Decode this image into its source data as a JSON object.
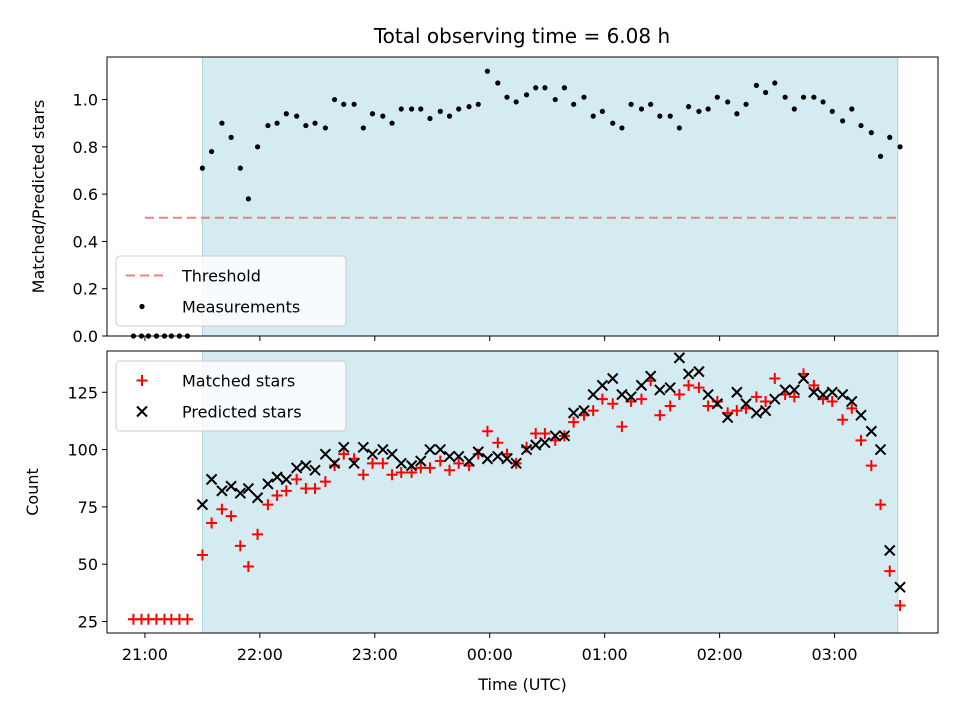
{
  "title": "Total observing time = 6.08 h",
  "colors": {
    "shade": "#d4ebf2",
    "shade_edge": "#a9d3e0",
    "threshold": "#f08080",
    "measurements": "#000000",
    "matched": "#ff0000",
    "predicted": "#000000"
  },
  "chart_data": [
    {
      "type": "scatter",
      "name": "ratio-panel",
      "xlabel": "",
      "ylabel": "Matched/Predicted stars",
      "xlim": [
        20.67,
        27.9
      ],
      "ylim": [
        0.0,
        1.18
      ],
      "yticks": [
        0.0,
        0.2,
        0.4,
        0.6,
        0.8,
        1.0
      ],
      "ytick_labels": [
        "0.0",
        "0.2",
        "0.4",
        "0.6",
        "0.8",
        "1.0"
      ],
      "xticks": [
        21,
        22,
        23,
        24,
        25,
        26,
        27
      ],
      "shaded_region": [
        21.5,
        27.55
      ],
      "threshold": {
        "value": 0.5,
        "x_range": [
          21.0,
          27.55
        ]
      },
      "legend": {
        "placement": "lower-left",
        "entries": [
          {
            "label": "Threshold",
            "marker": "dashed-line"
          },
          {
            "label": "Measurements",
            "marker": "dot"
          }
        ]
      },
      "measurements": {
        "x": [
          20.9,
          20.97,
          21.03,
          21.1,
          21.17,
          21.23,
          21.3,
          21.37,
          21.5,
          21.58,
          21.67,
          21.75,
          21.83,
          21.9,
          21.98,
          22.07,
          22.15,
          22.23,
          22.32,
          22.4,
          22.48,
          22.57,
          22.65,
          22.73,
          22.82,
          22.9,
          22.98,
          23.07,
          23.15,
          23.23,
          23.32,
          23.4,
          23.48,
          23.57,
          23.65,
          23.73,
          23.82,
          23.9,
          23.98,
          24.07,
          24.15,
          24.23,
          24.32,
          24.4,
          24.48,
          24.57,
          24.65,
          24.73,
          24.82,
          24.9,
          24.98,
          25.07,
          25.15,
          25.23,
          25.32,
          25.4,
          25.48,
          25.57,
          25.65,
          25.73,
          25.82,
          25.9,
          25.98,
          26.07,
          26.15,
          26.23,
          26.32,
          26.4,
          26.48,
          26.57,
          26.65,
          26.73,
          26.82,
          26.9,
          26.98,
          27.07,
          27.15,
          27.23,
          27.32,
          27.4,
          27.48,
          27.57
        ],
        "y": [
          0.0,
          0.0,
          0.0,
          0.0,
          0.0,
          0.0,
          0.0,
          0.0,
          0.71,
          0.78,
          0.9,
          0.84,
          0.71,
          0.58,
          0.8,
          0.89,
          0.9,
          0.94,
          0.93,
          0.89,
          0.9,
          0.88,
          1.0,
          0.98,
          0.98,
          0.88,
          0.94,
          0.93,
          0.9,
          0.96,
          0.96,
          0.96,
          0.92,
          0.95,
          0.93,
          0.96,
          0.97,
          0.98,
          1.12,
          1.07,
          1.01,
          0.99,
          1.02,
          1.05,
          1.05,
          1.0,
          1.05,
          0.98,
          1.01,
          0.93,
          0.95,
          0.9,
          0.88,
          0.98,
          0.96,
          0.98,
          0.93,
          0.93,
          0.88,
          0.97,
          0.95,
          0.96,
          1.01,
          0.99,
          0.94,
          0.98,
          1.06,
          1.03,
          1.07,
          1.01,
          0.96,
          1.01,
          1.01,
          0.99,
          0.95,
          0.91,
          0.96,
          0.89,
          0.86,
          0.76,
          0.84,
          0.8
        ]
      }
    },
    {
      "type": "scatter",
      "name": "count-panel",
      "xlabel": "Time (UTC)",
      "ylabel": "Count",
      "xlim": [
        20.67,
        27.9
      ],
      "ylim": [
        20,
        143
      ],
      "yticks": [
        25,
        50,
        75,
        100,
        125
      ],
      "ytick_labels": [
        "25",
        "50",
        "75",
        "100",
        "125"
      ],
      "xticks": [
        21,
        22,
        23,
        24,
        25,
        26,
        27
      ],
      "xtick_labels": [
        "21:00",
        "22:00",
        "23:00",
        "00:00",
        "01:00",
        "02:00",
        "03:00"
      ],
      "shaded_region": [
        21.5,
        27.55
      ],
      "legend": {
        "placement": "upper-left",
        "entries": [
          {
            "label": "Matched stars",
            "marker": "plus"
          },
          {
            "label": "Predicted stars",
            "marker": "x"
          }
        ]
      },
      "x": [
        20.9,
        20.97,
        21.03,
        21.1,
        21.17,
        21.23,
        21.3,
        21.37,
        21.5,
        21.58,
        21.67,
        21.75,
        21.83,
        21.9,
        21.98,
        22.07,
        22.15,
        22.23,
        22.32,
        22.4,
        22.48,
        22.57,
        22.65,
        22.73,
        22.82,
        22.9,
        22.98,
        23.07,
        23.15,
        23.23,
        23.32,
        23.4,
        23.48,
        23.57,
        23.65,
        23.73,
        23.82,
        23.9,
        23.98,
        24.07,
        24.15,
        24.23,
        24.32,
        24.4,
        24.48,
        24.57,
        24.65,
        24.73,
        24.82,
        24.9,
        24.98,
        25.07,
        25.15,
        25.23,
        25.32,
        25.4,
        25.48,
        25.57,
        25.65,
        25.73,
        25.82,
        25.9,
        25.98,
        26.07,
        26.15,
        26.23,
        26.32,
        26.4,
        26.48,
        26.57,
        26.65,
        26.73,
        26.82,
        26.9,
        26.98,
        27.07,
        27.15,
        27.23,
        27.32,
        27.4,
        27.48,
        27.57
      ],
      "series": [
        {
          "name": "Matched stars",
          "marker": "plus",
          "values": [
            26,
            26,
            26,
            26,
            26,
            26,
            26,
            26,
            54,
            68,
            74,
            71,
            58,
            49,
            63,
            76,
            80,
            82,
            87,
            83,
            83,
            86,
            93,
            98,
            96,
            89,
            94,
            94,
            89,
            90,
            90,
            92,
            92,
            95,
            91,
            94,
            93,
            98,
            108,
            103,
            98,
            94,
            101,
            107,
            107,
            104,
            106,
            112,
            115,
            117,
            122,
            120,
            110,
            121,
            122,
            130,
            115,
            119,
            124,
            128,
            127,
            119,
            121,
            116,
            117,
            118,
            123,
            121,
            131,
            124,
            123,
            133,
            128,
            122,
            121,
            113,
            118,
            104,
            93,
            76,
            47,
            32
          ]
        },
        {
          "name": "Predicted stars",
          "marker": "x",
          "values": [
            null,
            null,
            null,
            null,
            null,
            null,
            null,
            null,
            76,
            87,
            82,
            84,
            81,
            83,
            79,
            85,
            88,
            87,
            92,
            93,
            91,
            98,
            94,
            101,
            94,
            101,
            98,
            100,
            98,
            94,
            93,
            95,
            100,
            100,
            97,
            97,
            95,
            99,
            96,
            97,
            96,
            94,
            100,
            102,
            103,
            106,
            106,
            116,
            117,
            124,
            128,
            131,
            124,
            123,
            128,
            132,
            126,
            127,
            140,
            133,
            134,
            124,
            120,
            114,
            125,
            120,
            116,
            117,
            122,
            126,
            126,
            131,
            125,
            124,
            125,
            124,
            121,
            115,
            108,
            100,
            56,
            40
          ]
        }
      ]
    }
  ]
}
